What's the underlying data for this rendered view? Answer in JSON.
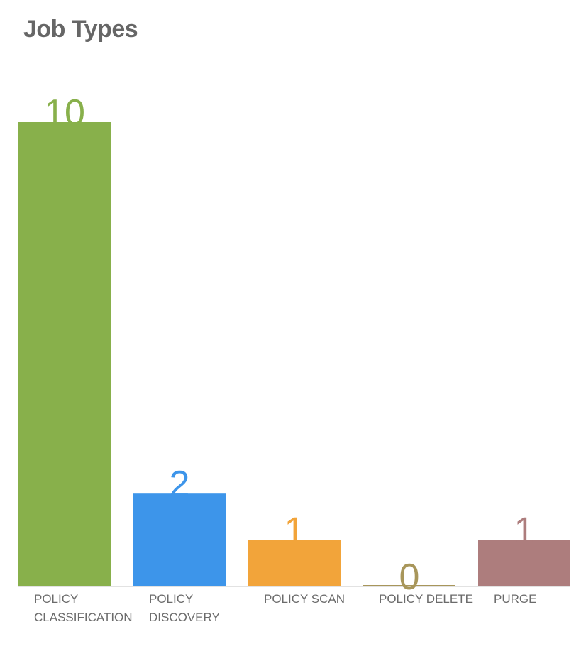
{
  "chart_data": {
    "type": "bar",
    "title": "Job Types",
    "categories": [
      [
        "POLICY",
        "CLASSIFICATION"
      ],
      [
        "POLICY",
        "DISCOVERY"
      ],
      [
        "POLICY SCAN"
      ],
      [
        "POLICY DELETE"
      ],
      [
        "PURGE"
      ]
    ],
    "values": [
      10,
      2,
      1,
      0,
      1
    ],
    "colors": [
      "#88b04b",
      "#3d95ea",
      "#f2a43a",
      "#a8965a",
      "#ad7d7d"
    ],
    "ylim": [
      0,
      10
    ],
    "grid": false,
    "legend": "none",
    "xlabel": "",
    "ylabel": ""
  }
}
